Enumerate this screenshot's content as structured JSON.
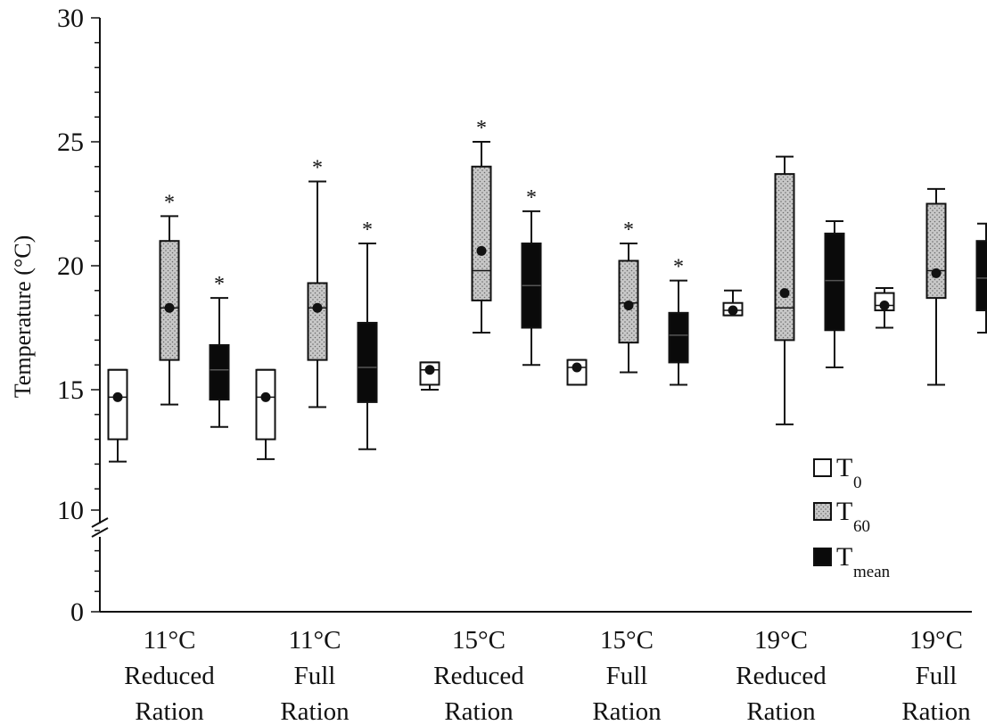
{
  "chart_data": {
    "type": "box",
    "ylabel": "Temperature (°C)",
    "ylim": [
      0,
      30
    ],
    "axis_break": [
      0,
      10
    ],
    "yticks": [
      0,
      10,
      15,
      20,
      25,
      30
    ],
    "legend_placement": "bottom-right",
    "categories": [
      [
        "11°C",
        "Reduced",
        "Ration"
      ],
      [
        "11°C",
        "Full",
        "Ration"
      ],
      [
        "15°C",
        "Reduced",
        "Ration"
      ],
      [
        "15°C",
        "Full",
        "Ration"
      ],
      [
        "19°C",
        "Reduced",
        "Ration"
      ],
      [
        "19°C",
        "Full",
        "Ration"
      ]
    ],
    "series": [
      {
        "name": "T",
        "sub": "0",
        "fill": "#ffffff",
        "pattern": "none",
        "boxes": [
          {
            "min": 12.1,
            "q1": 13.0,
            "median": 14.7,
            "q3": 15.8,
            "max": 15.8,
            "mean": 14.7,
            "sig": false
          },
          {
            "min": 12.2,
            "q1": 13.0,
            "median": 14.7,
            "q3": 15.8,
            "max": 15.8,
            "mean": 14.7,
            "sig": false
          },
          {
            "min": 15.0,
            "q1": 15.2,
            "median": 15.8,
            "q3": 16.1,
            "max": 16.1,
            "mean": 15.8,
            "sig": false
          },
          {
            "min": 15.2,
            "q1": 15.2,
            "median": 15.9,
            "q3": 16.2,
            "max": 16.2,
            "mean": 15.9,
            "sig": false
          },
          {
            "min": 18.0,
            "q1": 18.0,
            "median": 18.2,
            "q3": 18.5,
            "max": 19.0,
            "mean": 18.2,
            "sig": false
          },
          {
            "min": 17.5,
            "q1": 18.2,
            "median": 18.4,
            "q3": 18.9,
            "max": 19.1,
            "mean": 18.4,
            "sig": false
          }
        ]
      },
      {
        "name": "T",
        "sub": "60",
        "fill": "#c8c8c8",
        "pattern": "stipple",
        "boxes": [
          {
            "min": 14.4,
            "q1": 16.2,
            "median": 18.3,
            "q3": 21.0,
            "max": 22.0,
            "mean": 18.3,
            "sig": true
          },
          {
            "min": 14.3,
            "q1": 16.2,
            "median": 18.3,
            "q3": 19.3,
            "max": 23.4,
            "mean": 18.3,
            "sig": true
          },
          {
            "min": 17.3,
            "q1": 18.6,
            "median": 19.8,
            "q3": 24.0,
            "max": 25.0,
            "mean": 20.6,
            "sig": true
          },
          {
            "min": 15.7,
            "q1": 16.9,
            "median": 18.5,
            "q3": 20.2,
            "max": 20.9,
            "mean": 18.4,
            "sig": true
          },
          {
            "min": 13.6,
            "q1": 17.0,
            "median": 18.3,
            "q3": 23.7,
            "max": 24.4,
            "mean": 18.9,
            "sig": false
          },
          {
            "min": 15.2,
            "q1": 18.7,
            "median": 19.8,
            "q3": 22.5,
            "max": 23.1,
            "mean": 19.7,
            "sig": false
          }
        ]
      },
      {
        "name": "T",
        "sub": "mean",
        "fill": "#0a0a0a",
        "pattern": "solid",
        "boxes": [
          {
            "min": 13.5,
            "q1": 14.6,
            "median": 15.8,
            "q3": 16.8,
            "max": 18.7,
            "mean": 15.8,
            "sig": true
          },
          {
            "min": 12.6,
            "q1": 14.5,
            "median": 15.9,
            "q3": 17.7,
            "max": 20.9,
            "mean": 15.9,
            "sig": true
          },
          {
            "min": 16.0,
            "q1": 17.5,
            "median": 19.2,
            "q3": 20.9,
            "max": 22.2,
            "mean": 19.2,
            "sig": true
          },
          {
            "min": 15.2,
            "q1": 16.1,
            "median": 17.2,
            "q3": 18.1,
            "max": 19.4,
            "mean": 17.2,
            "sig": true
          },
          {
            "min": 15.9,
            "q1": 17.4,
            "median": 19.4,
            "q3": 21.3,
            "max": 21.8,
            "mean": 19.4,
            "sig": false
          },
          {
            "min": 17.3,
            "q1": 18.2,
            "median": 19.5,
            "q3": 21.0,
            "max": 21.7,
            "mean": 19.5,
            "sig": false
          }
        ]
      }
    ],
    "significance_marker": "*"
  }
}
